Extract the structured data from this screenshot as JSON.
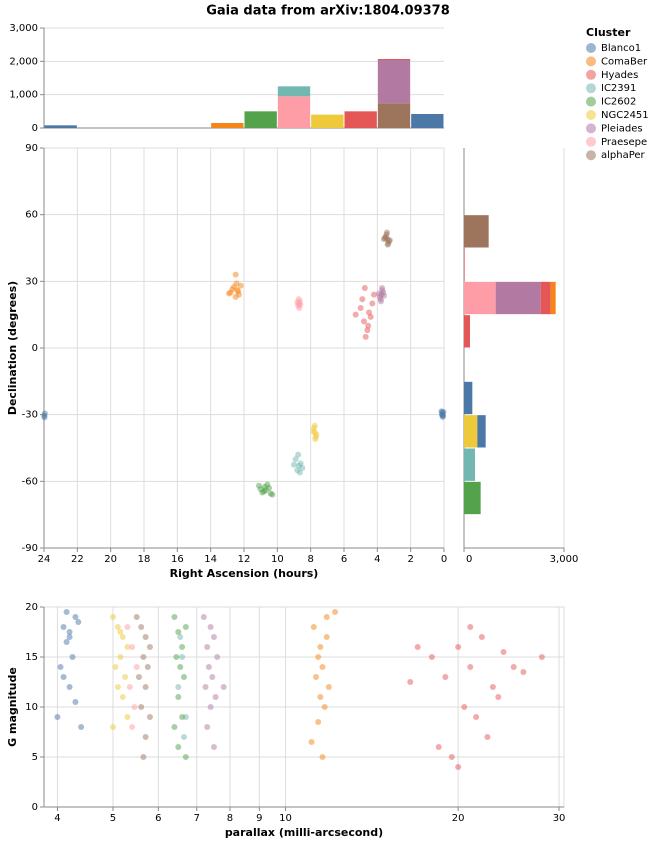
{
  "title": "Gaia data from arXiv:1804.09378",
  "legend_title": "Cluster",
  "chart_data": [
    {
      "type": "histogram",
      "orientation": "vertical",
      "stacked": true,
      "bins": [
        24,
        22,
        20,
        18,
        16,
        14,
        12,
        10,
        8,
        6,
        4,
        2,
        0
      ],
      "xlim": [
        24,
        0
      ],
      "ylim": [
        0,
        3000
      ],
      "yticks": [
        0,
        {
          "value": 1000,
          "label": "1,000"
        },
        {
          "value": 2000,
          "label": "2,000"
        },
        {
          "value": 3000,
          "label": "3,000"
        }
      ],
      "grid": true,
      "series": [
        {
          "name": "Blanco1",
          "color": "#4c78a8",
          "values": [
            80,
            0,
            0,
            0,
            0,
            0,
            0,
            0,
            0,
            0,
            0,
            420
          ]
        },
        {
          "name": "ComaBer",
          "color": "#f58518",
          "values": [
            0,
            0,
            0,
            0,
            0,
            150,
            0,
            0,
            0,
            0,
            0,
            0
          ]
        },
        {
          "name": "Hyades",
          "color": "#e45756",
          "values": [
            0,
            0,
            0,
            0,
            0,
            0,
            0,
            0,
            0,
            500,
            30,
            0
          ]
        },
        {
          "name": "IC2391",
          "color": "#72b7b2",
          "values": [
            0,
            0,
            0,
            0,
            0,
            0,
            0,
            300,
            0,
            0,
            0,
            0
          ]
        },
        {
          "name": "IC2602",
          "color": "#54a24b",
          "values": [
            0,
            0,
            0,
            0,
            0,
            0,
            500,
            0,
            0,
            0,
            0,
            0
          ]
        },
        {
          "name": "NGC2451",
          "color": "#eeca3b",
          "values": [
            0,
            0,
            0,
            0,
            0,
            0,
            0,
            0,
            400,
            0,
            0,
            0
          ]
        },
        {
          "name": "Pleiades",
          "color": "#b279a2",
          "values": [
            0,
            0,
            0,
            0,
            0,
            0,
            0,
            0,
            0,
            0,
            1300,
            0
          ]
        },
        {
          "name": "Praesepe",
          "color": "#ff9da6",
          "values": [
            0,
            0,
            0,
            0,
            0,
            0,
            0,
            950,
            0,
            0,
            0,
            0
          ]
        },
        {
          "name": "alphaPer",
          "color": "#9d755d",
          "values": [
            0,
            0,
            0,
            0,
            0,
            0,
            0,
            0,
            0,
            0,
            740,
            0
          ]
        }
      ]
    },
    {
      "type": "scatter",
      "xlabel": "Right Ascension (hours)",
      "ylabel": "Declination (degrees)",
      "xlim": [
        24,
        0
      ],
      "xticks": [
        24,
        22,
        20,
        18,
        16,
        14,
        12,
        10,
        8,
        6,
        4,
        2,
        0
      ],
      "ylim": [
        -90,
        90
      ],
      "yticks": [
        -90,
        -60,
        -30,
        0,
        30,
        60,
        90
      ],
      "grid": true,
      "series": [
        {
          "color": "#4c78a8",
          "x": [
            0.1,
            0.05,
            0.15,
            0.08,
            23.95,
            23.98,
            0.12,
            0.03,
            23.97,
            0.1
          ],
          "values": [
            -29,
            -30.5,
            -28.5,
            -31,
            -29.5,
            -30.5,
            -29.8,
            -28.8,
            -31.2,
            -30.2
          ]
        },
        {
          "color": "#f58518",
          "x": [
            12.4,
            12.6,
            12.3,
            12.8,
            12.2,
            12.5,
            12.7,
            12.45,
            12.9,
            12.35,
            12.5
          ],
          "values": [
            26,
            27.5,
            24,
            25,
            28,
            23,
            26.5,
            29,
            24.5,
            25.5,
            33
          ]
        },
        {
          "color": "#e45756",
          "x": [
            4.5,
            4.8,
            4.3,
            5.0,
            4.6,
            4.4,
            4.9,
            4.7,
            5.3,
            4.2,
            4.55,
            4.75
          ],
          "values": [
            16,
            12,
            20,
            18,
            8,
            14,
            22,
            5,
            15,
            24,
            10,
            27
          ]
        },
        {
          "color": "#72b7b2",
          "x": [
            8.7,
            8.6,
            8.8,
            8.9,
            8.5,
            8.75,
            8.65,
            9.0
          ],
          "values": [
            -53,
            -52,
            -55,
            -50,
            -54,
            -48,
            -56,
            -52.5
          ]
        },
        {
          "color": "#54a24b",
          "x": [
            10.7,
            10.5,
            10.9,
            11.1,
            10.3,
            10.6,
            10.8,
            11.0,
            10.4,
            10.75
          ],
          "values": [
            -64,
            -63,
            -65,
            -62,
            -66,
            -61.5,
            -64.5,
            -63.5,
            -65.5,
            -62.5
          ]
        },
        {
          "color": "#eeca3b",
          "x": [
            7.75,
            7.7,
            7.8,
            7.85,
            7.65,
            7.75,
            7.72
          ],
          "values": [
            -38,
            -40,
            -36,
            -37.5,
            -39,
            -35,
            -41
          ]
        },
        {
          "color": "#b279a2",
          "x": [
            3.75,
            3.8,
            3.7,
            3.85,
            3.65,
            3.78,
            3.72,
            3.9,
            3.6
          ],
          "values": [
            24,
            22,
            26,
            23,
            25,
            21,
            27,
            24.5,
            23.5
          ]
        },
        {
          "color": "#ff9da6",
          "x": [
            8.7,
            8.65,
            8.75,
            8.72,
            8.68,
            8.8,
            8.62
          ],
          "values": [
            20,
            21,
            19,
            22,
            18,
            20.5,
            19.5
          ]
        },
        {
          "color": "#9d755d",
          "x": [
            3.4,
            3.3,
            3.5,
            3.45,
            3.35,
            3.55,
            3.25,
            3.42,
            3.38,
            3.6
          ],
          "values": [
            49,
            48,
            50,
            51,
            47,
            49.5,
            48.5,
            52,
            46.5,
            49
          ]
        }
      ]
    },
    {
      "type": "histogram",
      "orientation": "horizontal",
      "stacked": true,
      "bins": [
        90,
        75,
        60,
        45,
        30,
        15,
        0,
        -15,
        -30,
        -45,
        -60,
        -75,
        -90
      ],
      "ylim": [
        -90,
        90
      ],
      "xlim": [
        0,
        3000
      ],
      "xticks": [
        0,
        {
          "value": 3000,
          "label": "3,000"
        }
      ],
      "grid": true,
      "series": [
        {
          "color": "#4c78a8",
          "values": [
            0,
            0,
            0,
            0,
            0,
            0,
            0,
            250,
            250,
            0,
            0,
            0
          ]
        },
        {
          "color": "#f58518",
          "values": [
            0,
            0,
            0,
            0,
            150,
            0,
            0,
            0,
            0,
            0,
            0,
            0
          ]
        },
        {
          "color": "#e45756",
          "values": [
            0,
            0,
            0,
            20,
            300,
            180,
            0,
            0,
            0,
            0,
            0,
            0
          ]
        },
        {
          "color": "#72b7b2",
          "values": [
            0,
            0,
            0,
            0,
            0,
            0,
            0,
            0,
            0,
            330,
            0,
            0
          ]
        },
        {
          "color": "#54a24b",
          "values": [
            0,
            0,
            0,
            0,
            0,
            0,
            0,
            0,
            0,
            0,
            500,
            0
          ]
        },
        {
          "color": "#eeca3b",
          "values": [
            0,
            0,
            0,
            0,
            0,
            0,
            0,
            0,
            400,
            0,
            0,
            0
          ]
        },
        {
          "color": "#b279a2",
          "values": [
            0,
            0,
            0,
            0,
            1350,
            0,
            0,
            0,
            0,
            0,
            0,
            0
          ]
        },
        {
          "color": "#ff9da6",
          "values": [
            0,
            0,
            0,
            0,
            950,
            0,
            0,
            0,
            0,
            0,
            0,
            0
          ]
        },
        {
          "color": "#9d755d",
          "values": [
            0,
            0,
            740,
            0,
            0,
            0,
            0,
            0,
            0,
            0,
            0,
            0
          ]
        }
      ]
    },
    {
      "type": "scatter",
      "xlabel": "parallax (milli-arcsecond)",
      "ylabel": "G magnitude",
      "xscale": "log",
      "xlim": [
        3.79,
        30.6
      ],
      "xticks": [
        4,
        5,
        6,
        7,
        8,
        9,
        10,
        20,
        30
      ],
      "ylim": [
        0,
        20
      ],
      "yticks": [
        0,
        5,
        10,
        15,
        20
      ],
      "grid": true,
      "series": [
        {
          "color": "#4c78a8",
          "x": [
            4.1,
            4.2,
            4.3,
            4.15,
            4.25,
            4.05,
            4.35,
            4.2,
            4.1,
            4.3,
            4.2,
            4.0,
            4.4,
            4.15
          ],
          "values": [
            18,
            17,
            19,
            16.5,
            15,
            14,
            18.5,
            12,
            13,
            10.5,
            17.5,
            9,
            8,
            19.5
          ]
        },
        {
          "color": "#f58518",
          "x": [
            11.2,
            11.5,
            11.8,
            11.4,
            11.6,
            11.3,
            11.9,
            11.5,
            11.7,
            11.4,
            12.2,
            11.1,
            11.6,
            11.8
          ],
          "values": [
            18,
            16,
            17,
            15,
            14,
            13,
            12,
            11,
            10,
            8.5,
            19.5,
            6.5,
            5,
            19
          ]
        },
        {
          "color": "#e45756",
          "x": [
            18,
            20,
            21,
            22,
            24,
            19,
            23,
            20.5,
            21.5,
            25,
            17,
            26,
            22.5,
            19.5,
            20,
            23.5,
            16.5,
            28,
            21,
            18.5
          ],
          "values": [
            15,
            16,
            14,
            17,
            15.5,
            13,
            12,
            10,
            9,
            14,
            16,
            13.5,
            7,
            5,
            4,
            11,
            12.5,
            15,
            18,
            6
          ]
        },
        {
          "color": "#72b7b2",
          "x": [
            6.5,
            6.6,
            6.7,
            6.55,
            6.65
          ],
          "values": [
            12,
            15,
            9,
            17,
            7
          ]
        },
        {
          "color": "#54a24b",
          "x": [
            6.4,
            6.5,
            6.6,
            6.7,
            6.45,
            6.55,
            6.65,
            6.5,
            6.6,
            6.4,
            6.5,
            6.7
          ],
          "values": [
            19,
            17.5,
            16,
            18,
            15,
            14,
            13,
            11,
            9,
            8,
            6,
            5
          ]
        },
        {
          "color": "#eeca3b",
          "x": [
            5.0,
            5.1,
            5.2,
            5.3,
            5.15,
            5.05,
            5.25,
            5.1,
            5.2,
            5.3,
            5.0,
            5.15
          ],
          "values": [
            19,
            18,
            17,
            16,
            15,
            14,
            13,
            12,
            11,
            9,
            8,
            17.5
          ]
        },
        {
          "color": "#b279a2",
          "x": [
            7.2,
            7.4,
            7.5,
            7.3,
            7.6,
            7.35,
            7.45,
            7.25,
            7.55,
            7.4,
            7.3,
            7.5,
            7.8
          ],
          "values": [
            19,
            18,
            17,
            16,
            15,
            14,
            13,
            12,
            11,
            10,
            8,
            6,
            12
          ]
        },
        {
          "color": "#ff9da6",
          "x": [
            5.3,
            5.4,
            5.5,
            5.35,
            5.45,
            5.4
          ],
          "values": [
            18,
            16,
            14,
            12,
            10,
            8
          ]
        },
        {
          "color": "#9d755d",
          "x": [
            5.5,
            5.6,
            5.7,
            5.8,
            5.65,
            5.75,
            5.55,
            5.7,
            5.6,
            5.8,
            5.7,
            5.65
          ],
          "values": [
            19,
            18,
            17,
            16,
            15,
            14,
            13,
            12,
            10,
            9,
            7,
            5
          ]
        }
      ]
    }
  ]
}
